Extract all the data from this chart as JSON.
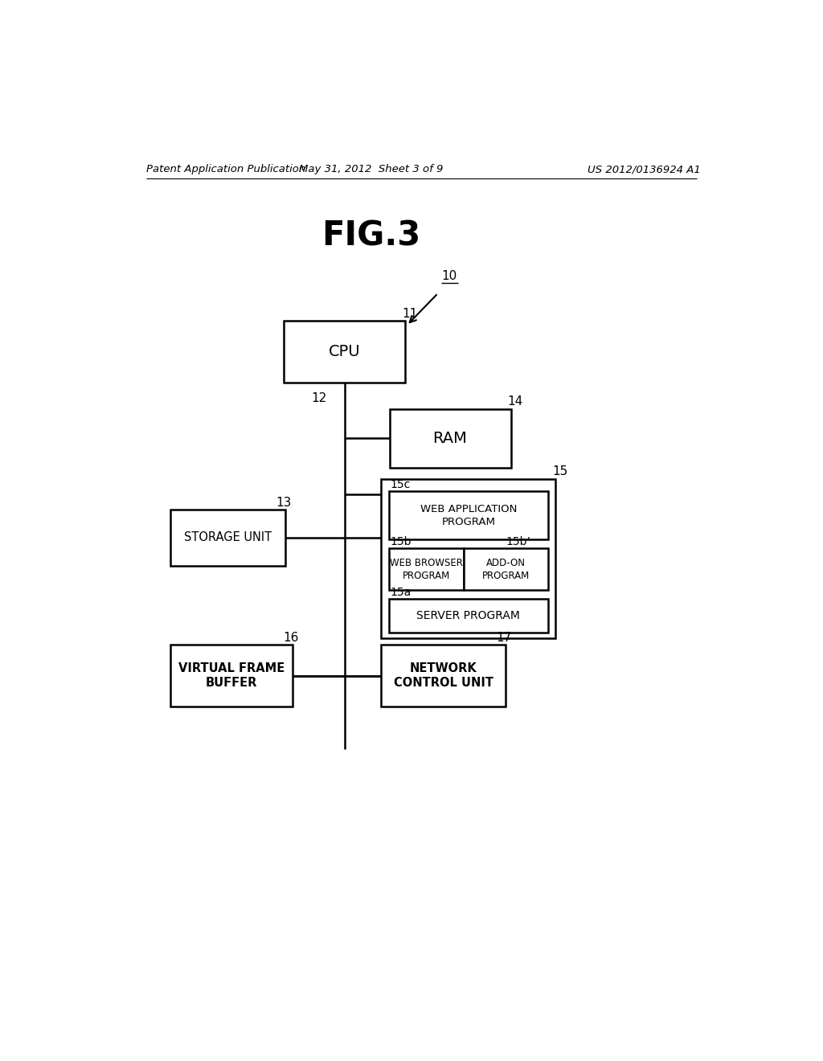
{
  "bg_color": "#ffffff",
  "header_left": "Patent Application Publication",
  "header_mid": "May 31, 2012  Sheet 3 of 9",
  "header_right": "US 2012/0136924 A1",
  "fig_title": "FIG.3",
  "label_10": "10",
  "label_11": "11",
  "label_12": "12",
  "label_13": "13",
  "label_14": "14",
  "label_15": "15",
  "label_15a": "15a",
  "label_15b": "15b",
  "label_15b_prime": "15b’",
  "label_15c": "15c",
  "label_16": "16",
  "label_17": "17",
  "cpu_text": "CPU",
  "ram_text": "RAM",
  "storage_text": "STORAGE UNIT",
  "web_app_text": "WEB APPLICATION\nPROGRAM",
  "web_browser_text": "WEB BROWSER\nPROGRAM",
  "addon_text": "ADD-ON\nPROGRAM",
  "server_text": "SERVER PROGRAM",
  "vfb_text": "VIRTUAL FRAME\nBUFFER",
  "ncu_text": "NETWORK\nCONTROL UNIT",
  "text_color": "#000000",
  "box_edgecolor": "#000000",
  "box_facecolor": "#ffffff",
  "linewidth": 1.8
}
